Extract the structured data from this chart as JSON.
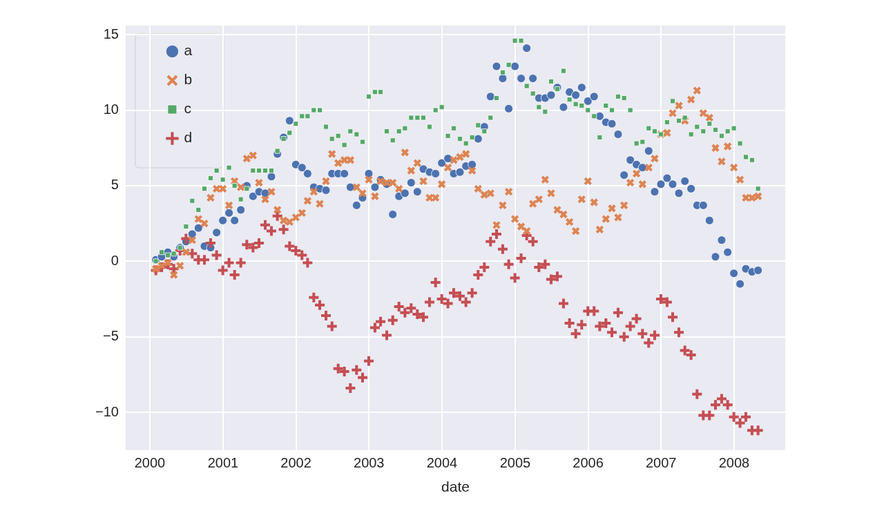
{
  "chart_data": {
    "type": "scatter",
    "xlabel": "date",
    "x": [
      "2000-01-31",
      "2000-02-29",
      "2000-03-31",
      "2000-04-30",
      "2000-05-31",
      "2000-06-30",
      "2000-07-31",
      "2000-08-31",
      "2000-09-30",
      "2000-10-31",
      "2000-11-30",
      "2000-12-31",
      "2001-01-31",
      "2001-02-28",
      "2001-03-31",
      "2001-04-30",
      "2001-05-31",
      "2001-06-30",
      "2001-07-31",
      "2001-08-31",
      "2001-09-30",
      "2001-10-31",
      "2001-11-30",
      "2001-12-31",
      "2002-01-31",
      "2002-02-28",
      "2002-03-31",
      "2002-04-30",
      "2002-05-31",
      "2002-06-30",
      "2002-07-31",
      "2002-08-31",
      "2002-09-30",
      "2002-10-31",
      "2002-11-30",
      "2002-12-31",
      "2003-01-31",
      "2003-02-28",
      "2003-03-31",
      "2003-04-30",
      "2003-05-31",
      "2003-06-30",
      "2003-07-31",
      "2003-08-31",
      "2003-09-30",
      "2003-10-31",
      "2003-11-30",
      "2003-12-31",
      "2004-01-31",
      "2004-02-29",
      "2004-03-31",
      "2004-04-30",
      "2004-05-31",
      "2004-06-30",
      "2004-07-31",
      "2004-08-31",
      "2004-09-30",
      "2004-10-31",
      "2004-11-30",
      "2004-12-31",
      "2005-01-31",
      "2005-02-28",
      "2005-03-31",
      "2005-04-30",
      "2005-05-31",
      "2005-06-30",
      "2005-07-31",
      "2005-08-31",
      "2005-09-30",
      "2005-10-31",
      "2005-11-30",
      "2005-12-31",
      "2006-01-31",
      "2006-02-28",
      "2006-03-31",
      "2006-04-30",
      "2006-05-31",
      "2006-06-30",
      "2006-07-31",
      "2006-08-31",
      "2006-09-30",
      "2006-10-31",
      "2006-11-30",
      "2006-12-31",
      "2007-01-31",
      "2007-02-28",
      "2007-03-31",
      "2007-04-30",
      "2007-05-31",
      "2007-06-30",
      "2007-07-31",
      "2007-08-31",
      "2007-09-30",
      "2007-10-31",
      "2007-11-30",
      "2007-12-31",
      "2008-01-31",
      "2008-02-29",
      "2008-03-31",
      "2008-04-30"
    ],
    "series": [
      {
        "name": "a",
        "color": "#4c72b0",
        "marker": "circle",
        "values": [
          0.1,
          0.3,
          0.6,
          0.3,
          0.9,
          1.3,
          1.8,
          2.2,
          1.0,
          0.9,
          1.9,
          2.7,
          3.2,
          2.7,
          3.4,
          5.0,
          4.3,
          4.6,
          4.5,
          5.6,
          7.1,
          8.2,
          9.3,
          6.4,
          6.2,
          5.8,
          4.9,
          4.8,
          4.7,
          5.8,
          5.8,
          5.8,
          4.9,
          3.7,
          4.2,
          5.8,
          4.9,
          5.4,
          5.1,
          3.1,
          4.3,
          4.5,
          5.2,
          4.6,
          6.1,
          5.9,
          5.8,
          6.5,
          6.8,
          5.8,
          5.9,
          6.3,
          6.4,
          8.1,
          8.9,
          10.9,
          12.9,
          12.1,
          10.1,
          12.9,
          12.1,
          14.1,
          12.1,
          10.8,
          10.8,
          11.0,
          11.5,
          10.2,
          11.2,
          11.0,
          11.5,
          10.6,
          10.9,
          9.6,
          9.2,
          9.1,
          8.4,
          5.7,
          6.7,
          6.4,
          6.2,
          7.3,
          4.6,
          5.1,
          5.5,
          5.1,
          4.5,
          5.3,
          4.8,
          3.7,
          3.7,
          2.7,
          0.3,
          1.4,
          0.6,
          -0.8,
          -1.5,
          -0.5,
          -0.7,
          -0.6
        ]
      },
      {
        "name": "b",
        "color": "#dd8452",
        "marker": "x",
        "values": [
          -0.5,
          -0.3,
          -0.1,
          -0.9,
          -0.3,
          0.6,
          1.4,
          2.8,
          2.5,
          4.2,
          4.8,
          4.8,
          3.7,
          5.3,
          4.9,
          6.8,
          7.0,
          5.2,
          4.1,
          4.6,
          3.4,
          2.7,
          2.6,
          2.9,
          3.2,
          4.0,
          4.6,
          3.8,
          5.3,
          7.1,
          6.5,
          6.7,
          6.7,
          4.9,
          4.5,
          5.4,
          4.3,
          5.3,
          5.2,
          5.2,
          4.8,
          7.2,
          6.0,
          6.5,
          5.3,
          4.2,
          4.2,
          5.1,
          6.2,
          6.7,
          6.9,
          7.1,
          6.0,
          4.8,
          4.4,
          4.5,
          2.4,
          3.7,
          4.6,
          2.8,
          2.3,
          2.0,
          3.8,
          4.1,
          5.4,
          4.5,
          3.4,
          3.1,
          2.6,
          2.0,
          4.1,
          5.3,
          3.9,
          2.1,
          2.8,
          3.5,
          2.9,
          3.7,
          5.2,
          5.8,
          5.1,
          6.2,
          6.8,
          8.4,
          8.5,
          9.8,
          10.3,
          9.3,
          10.7,
          11.3,
          9.8,
          9.5,
          7.5,
          6.6,
          7.6,
          6.2,
          5.4,
          4.2,
          4.2,
          4.3
        ]
      },
      {
        "name": "c",
        "color": "#55a868",
        "marker": "square",
        "values": [
          0.0,
          0.6,
          0.4,
          0.5,
          0.9,
          2.3,
          4.0,
          3.4,
          4.8,
          5.5,
          6.0,
          5.4,
          6.2,
          5.0,
          4.1,
          4.8,
          6.0,
          6.0,
          6.0,
          6.0,
          7.3,
          8.1,
          8.5,
          9.1,
          9.6,
          9.6,
          10.0,
          10.0,
          8.9,
          8.1,
          8.3,
          7.7,
          8.6,
          8.4,
          7.9,
          10.9,
          11.2,
          11.2,
          8.6,
          8.0,
          8.6,
          8.8,
          9.5,
          9.5,
          9.5,
          8.9,
          10.0,
          10.2,
          8.3,
          8.8,
          8.1,
          7.8,
          8.2,
          9.0,
          8.6,
          9.5,
          10.8,
          12.5,
          13.0,
          14.6,
          14.6,
          11.6,
          11.1,
          10.2,
          9.9,
          11.9,
          11.4,
          12.6,
          10.7,
          10.4,
          10.3,
          10.0,
          9.6,
          8.2,
          10.3,
          10.0,
          10.9,
          10.8,
          10.0,
          7.8,
          7.9,
          8.8,
          8.6,
          8.4,
          9.2,
          10.6,
          9.3,
          9.5,
          8.4,
          8.9,
          8.6,
          9.1,
          8.7,
          8.3,
          8.6,
          8.8,
          7.8,
          6.9,
          6.7,
          4.8
        ]
      },
      {
        "name": "d",
        "color": "#c44e52",
        "marker": "cross",
        "values": [
          -0.6,
          -0.4,
          -0.2,
          -0.5,
          0.7,
          1.5,
          0.5,
          0.1,
          0.1,
          1.2,
          0.4,
          -0.6,
          -0.1,
          -0.9,
          -0.1,
          1.1,
          0.9,
          1.2,
          2.4,
          2.0,
          3.0,
          2.1,
          1.0,
          0.7,
          0.4,
          -0.1,
          -2.4,
          -2.9,
          -3.6,
          -4.3,
          -7.1,
          -7.3,
          -8.4,
          -7.2,
          -7.7,
          -6.6,
          -4.4,
          -4.0,
          -4.9,
          -3.9,
          -3.0,
          -3.4,
          -3.1,
          -3.5,
          -3.7,
          -2.7,
          -1.4,
          -2.5,
          -2.8,
          -2.1,
          -2.3,
          -2.7,
          -2.1,
          -0.9,
          -0.4,
          1.3,
          1.8,
          0.8,
          -0.2,
          -1.1,
          0.2,
          1.7,
          1.3,
          -0.4,
          -0.2,
          -1.2,
          -1.0,
          -2.8,
          -4.1,
          -4.8,
          -4.2,
          -3.3,
          -3.3,
          -4.3,
          -4.1,
          -4.7,
          -3.4,
          -5.0,
          -4.3,
          -3.8,
          -4.8,
          -5.4,
          -4.9,
          -2.5,
          -2.7,
          -3.7,
          -4.7,
          -5.9,
          -6.2,
          -8.8,
          -10.2,
          -10.2,
          -9.5,
          -9.1,
          -9.5,
          -10.3,
          -10.7,
          -10.3,
          -11.2,
          -11.2
        ]
      }
    ],
    "xlim": [
      "1999-09-02",
      "2008-09-13"
    ],
    "xticks": [
      "2000",
      "2001",
      "2002",
      "2003",
      "2004",
      "2005",
      "2006",
      "2007",
      "2008"
    ],
    "ylim": [
      -12.5,
      15.6
    ],
    "yticks": [
      -10,
      -5,
      0,
      5,
      10,
      15
    ],
    "grid": true,
    "legend": "top left"
  }
}
